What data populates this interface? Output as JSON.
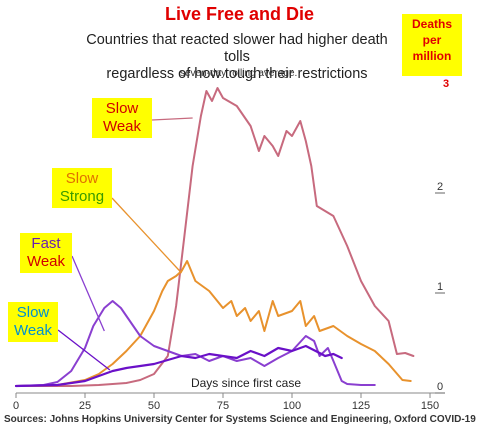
{
  "header": {
    "title": "Live Free and Die",
    "subtitle_line1": "Countries that reacted slower had higher death tolls",
    "subtitle_line2": "regardless of how tough their restrictions",
    "note": "seven-day rolling average."
  },
  "ylabel_box": {
    "line1": "Deaths",
    "line2": "per",
    "line3": "million",
    "top_tick": "3"
  },
  "source": "Sources: Johns Hopkins University Center for Systems Science and Engineering, Oxford COVID-19",
  "labels": [
    {
      "line1": "Slow",
      "line2": "Weak",
      "color1": "#d00000",
      "color2": "#d00000"
    },
    {
      "line1": "Slow",
      "line2": "Strong",
      "color1": "#e07000",
      "color2": "#3a9a00"
    },
    {
      "line1": "Fast",
      "line2": "Weak",
      "color1": "#6a1fb0",
      "color2": "#d00000"
    },
    {
      "line1": "Slow",
      "line2": "Weak",
      "color1": "#0090d0",
      "color2": "#0090d0"
    }
  ],
  "chart_data": {
    "type": "line",
    "xlabel": "Days since first case",
    "ylabel": "Deaths per million",
    "xlim": [
      0,
      150
    ],
    "ylim": [
      0,
      3
    ],
    "x_ticks": [
      0,
      25,
      50,
      75,
      100,
      125,
      150
    ],
    "y_ticks": [
      0,
      1,
      2
    ],
    "grid": false,
    "series": [
      {
        "color": "#c76a7e",
        "x": [
          0,
          20,
          30,
          40,
          45,
          50,
          55,
          58,
          61,
          64,
          67,
          69,
          71,
          73,
          75,
          80,
          85,
          88,
          90,
          93,
          95,
          98,
          100,
          103,
          105,
          107,
          109,
          112,
          115,
          120,
          125,
          130,
          135,
          138,
          141,
          144
        ],
        "y": [
          0,
          0,
          0.01,
          0.03,
          0.06,
          0.12,
          0.3,
          0.8,
          1.5,
          2.2,
          2.7,
          2.95,
          2.85,
          2.98,
          2.88,
          2.8,
          2.6,
          2.35,
          2.5,
          2.4,
          2.3,
          2.55,
          2.5,
          2.65,
          2.45,
          2.2,
          1.8,
          1.75,
          1.7,
          1.4,
          1.05,
          0.8,
          0.65,
          0.32,
          0.33,
          0.3
        ]
      },
      {
        "color": "#e8922d",
        "x": [
          0,
          15,
          25,
          30,
          35,
          40,
          45,
          50,
          53,
          55,
          58,
          60,
          62,
          65,
          70,
          75,
          78,
          80,
          83,
          85,
          88,
          90,
          93,
          95,
          100,
          103,
          105,
          108,
          110,
          115,
          120,
          125,
          130,
          135,
          140,
          143
        ],
        "y": [
          0,
          0.01,
          0.06,
          0.12,
          0.22,
          0.35,
          0.5,
          0.75,
          0.95,
          1.05,
          1.1,
          1.15,
          1.25,
          1.05,
          0.95,
          0.78,
          0.85,
          0.7,
          0.78,
          0.65,
          0.75,
          0.55,
          0.85,
          0.7,
          0.75,
          0.85,
          0.6,
          0.7,
          0.55,
          0.6,
          0.5,
          0.42,
          0.35,
          0.22,
          0.06,
          0.05
        ]
      },
      {
        "color": "#8a3fd0",
        "x": [
          0,
          10,
          15,
          20,
          25,
          28,
          32,
          35,
          38,
          40,
          42,
          45,
          50,
          55,
          60,
          65,
          70,
          75,
          80,
          85,
          90,
          95,
          100,
          105,
          108,
          110,
          113,
          115,
          118,
          120,
          125,
          130
        ],
        "y": [
          0,
          0.01,
          0.04,
          0.15,
          0.38,
          0.6,
          0.78,
          0.85,
          0.78,
          0.7,
          0.62,
          0.5,
          0.4,
          0.35,
          0.3,
          0.32,
          0.25,
          0.3,
          0.25,
          0.28,
          0.2,
          0.28,
          0.35,
          0.5,
          0.45,
          0.3,
          0.38,
          0.25,
          0.05,
          0.02,
          0.01,
          0.01
        ]
      },
      {
        "color": "#6a10c8",
        "x": [
          0,
          15,
          25,
          30,
          35,
          40,
          45,
          50,
          55,
          60,
          65,
          70,
          75,
          80,
          85,
          90,
          95,
          100,
          105,
          110,
          112,
          115,
          118
        ],
        "y": [
          0,
          0.01,
          0.05,
          0.1,
          0.15,
          0.18,
          0.2,
          0.22,
          0.26,
          0.3,
          0.28,
          0.32,
          0.3,
          0.28,
          0.35,
          0.3,
          0.38,
          0.35,
          0.4,
          0.33,
          0.3,
          0.32,
          0.28
        ]
      }
    ]
  }
}
